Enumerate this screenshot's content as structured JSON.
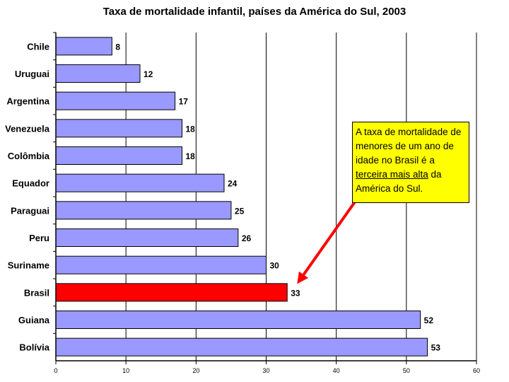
{
  "chart_data": {
    "type": "bar",
    "orientation": "horizontal",
    "title": "Taxa de mortalidade infantil, países da América do Sul, 2003",
    "categories": [
      "Chile",
      "Uruguai",
      "Argentina",
      "Venezuela",
      "Colômbia",
      "Equador",
      "Paraguai",
      "Peru",
      "Suriname",
      "Brasil",
      "Guiana",
      "Bolívia"
    ],
    "values": [
      8,
      12,
      17,
      18,
      18,
      24,
      25,
      26,
      30,
      33,
      52,
      53
    ],
    "highlight": "Brasil",
    "xlim": [
      0,
      60
    ],
    "xticks": [
      0,
      10,
      20,
      30,
      40,
      50,
      60
    ],
    "grid": "vertical",
    "colors": {
      "bar": "#9999ff",
      "highlight": "#ff0000",
      "callout": "#ffff00",
      "arrow": "#ff0000"
    },
    "annotation": {
      "text_before": "A taxa de mortalidade de menores de um ano de idade no Brasil é a ",
      "text_underlined": "terceira mais alta",
      "text_after": " da América do Sul.",
      "points_to": "Brasil"
    }
  }
}
